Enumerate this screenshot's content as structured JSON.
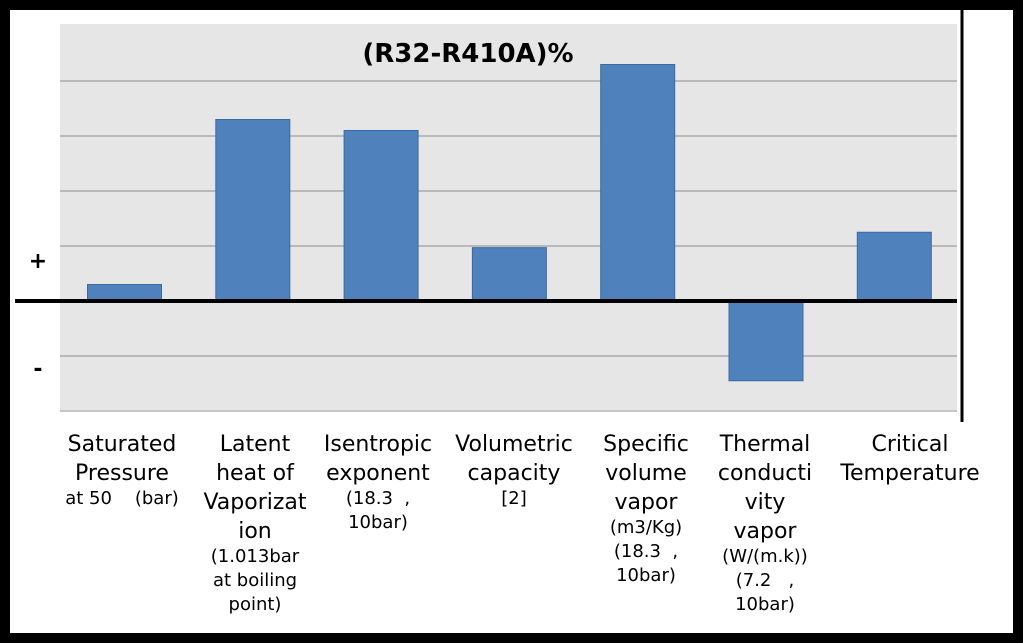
{
  "chart_data": {
    "type": "bar",
    "title": "(R32-R410A)%",
    "xlabel": "",
    "ylabel": "",
    "positive_sign": "+",
    "negative_sign": "-",
    "ylim": [
      -2,
      4
    ],
    "grid": true,
    "legend": "none",
    "bar_color": "#4f81bd",
    "plot_background": "#e6e6e6",
    "categories": [
      {
        "main": [
          "Saturated",
          "Pressure"
        ],
        "detail": [
          "at 50    (bar)"
        ]
      },
      {
        "main": [
          "Latent",
          "heat of",
          "Vaporizat",
          "ion"
        ],
        "detail": [
          "(1.013bar",
          "at boiling",
          "point)"
        ]
      },
      {
        "main": [
          "Isentropic",
          "exponent"
        ],
        "detail": [
          "(18.3  ,",
          "10bar)"
        ]
      },
      {
        "main": [
          "Volumetric",
          "capacity"
        ],
        "detail": [
          "[2]"
        ]
      },
      {
        "main": [
          "Specific",
          "volume",
          "vapor"
        ],
        "detail": [
          "(m3/Kg)",
          "(18.3  ,",
          "10bar)"
        ]
      },
      {
        "main": [
          "Thermal",
          "conducti",
          "vity",
          "vapor"
        ],
        "detail": [
          "(W/(m.k))",
          "(7.2   ,",
          "10bar)"
        ]
      },
      {
        "main": [
          "Critical",
          "Temperature"
        ],
        "detail": []
      }
    ],
    "values": [
      0.3,
      3.3,
      3.1,
      0.97,
      4.3,
      -1.45,
      1.25
    ]
  }
}
